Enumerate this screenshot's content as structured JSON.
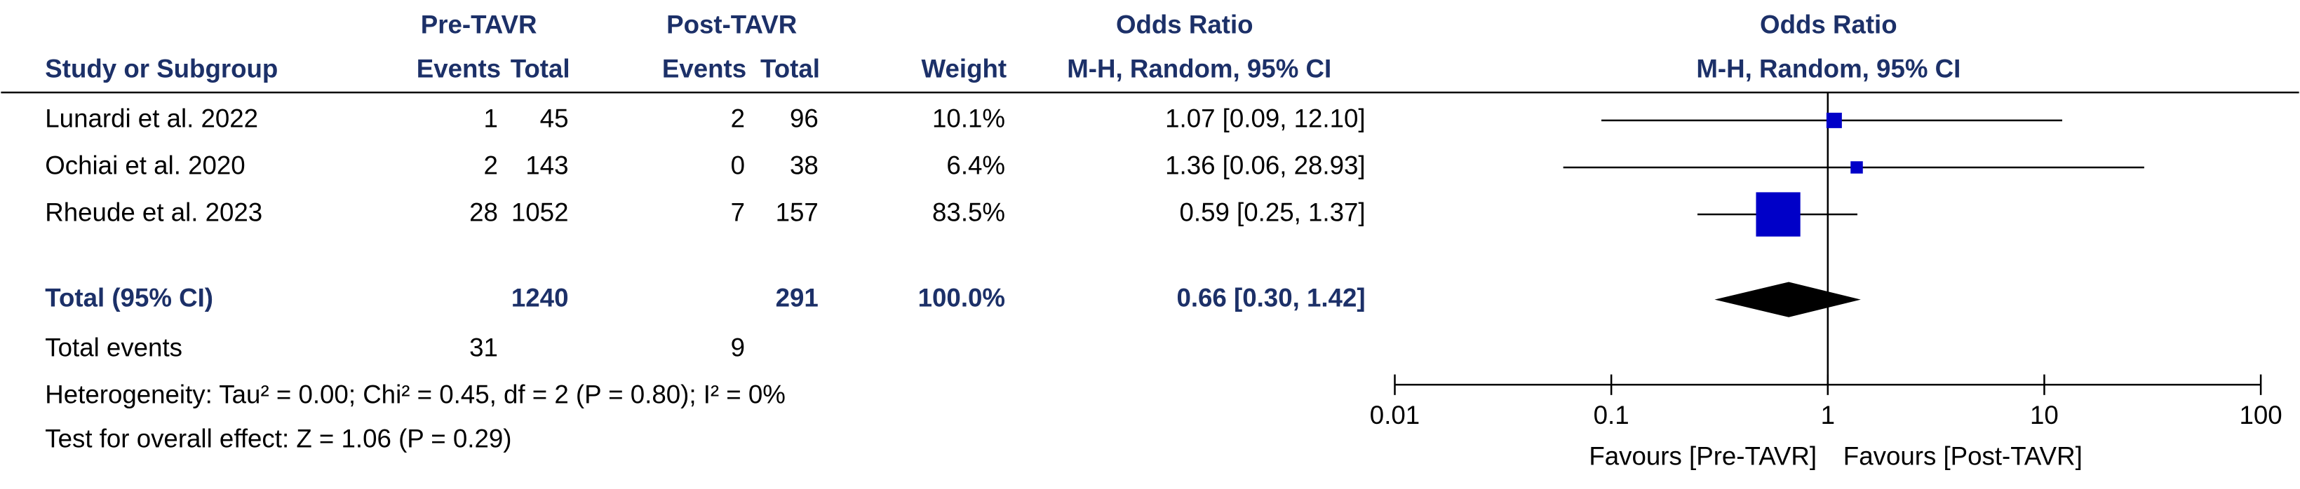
{
  "chart_data": {
    "type": "forest",
    "group_headers": {
      "pre": "Pre-TAVR",
      "post": "Post-TAVR",
      "or_table": "Odds Ratio",
      "or_plot": "Odds Ratio"
    },
    "column_headers": {
      "study": "Study or Subgroup",
      "events_pre": "Events",
      "total_pre": "Total",
      "events_post": "Events",
      "total_post": "Total",
      "weight": "Weight",
      "method_table": "M-H, Random, 95% CI",
      "method_plot": "M-H, Random, 95% CI"
    },
    "studies": [
      {
        "name": "Lunardi et al. 2022",
        "events_pre": 1,
        "total_pre": 45,
        "events_post": 2,
        "total_post": 96,
        "weight": {
          "value": 10.1,
          "label": "10.1%"
        },
        "or_label": "1.07 [0.09, 12.10]",
        "or": 1.07,
        "ci_lower": 0.09,
        "ci_upper": 12.1
      },
      {
        "name": "Ochiai et al. 2020",
        "events_pre": 2,
        "total_pre": 143,
        "events_post": 0,
        "total_post": 38,
        "weight": {
          "value": 6.4,
          "label": "6.4%"
        },
        "or_label": "1.36 [0.06, 28.93]",
        "or": 1.36,
        "ci_lower": 0.06,
        "ci_upper": 28.93
      },
      {
        "name": "Rheude et al. 2023",
        "events_pre": 28,
        "total_pre": 1052,
        "events_post": 7,
        "total_post": 157,
        "weight": {
          "value": 83.5,
          "label": "83.5%"
        },
        "or_label": "0.59 [0.25, 1.37]",
        "or": 0.59,
        "ci_lower": 0.25,
        "ci_upper": 1.37
      }
    ],
    "total": {
      "name": "Total (95% CI)",
      "total_pre": 1240,
      "total_post": 291,
      "weight": {
        "value": 100.0,
        "label": "100.0%"
      },
      "or_label": "0.66 [0.30, 1.42]",
      "or": 0.66,
      "ci_lower": 0.3,
      "ci_upper": 1.42
    },
    "total_events": {
      "label": "Total events",
      "events_pre": 31,
      "events_post": 9
    },
    "heterogeneity": "Heterogeneity: Tau² = 0.00; Chi² = 0.45, df = 2 (P = 0.80); I² = 0%",
    "overall_effect": "Test for overall effect: Z = 1.06 (P = 0.29)",
    "x_scale": "log",
    "xlim": [
      0.01,
      100
    ],
    "xticks": [
      0.01,
      0.1,
      1,
      10,
      100
    ],
    "favours_left": "Favours [Pre-TAVR]",
    "favours_right": "Favours [Post-TAVR]",
    "square_color": "#0000c8",
    "diamond_color": "#000000"
  }
}
